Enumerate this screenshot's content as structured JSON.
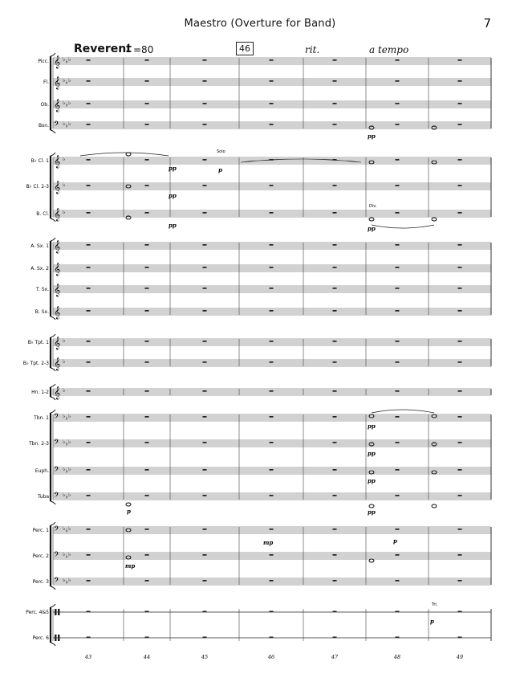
{
  "header": {
    "title": "Maestro (Overture for Band)",
    "page_number": "7"
  },
  "tempo": {
    "marking": "Reverent",
    "note_symbol": "♩",
    "value": "=80"
  },
  "rehearsal": {
    "mark": "46",
    "rit": "rit.",
    "a_tempo": "a tempo"
  },
  "instruments": [
    "Picc.",
    "Fl.",
    "Ob.",
    "Bsn.",
    "B♭ Cl. 1",
    "B♭ Cl. 2-3",
    "B. Cl.",
    "A. Sx. 1",
    "A. Sx. 2",
    "T. Sx.",
    "B. Sx.",
    "B♭ Tpt. 1",
    "B♭ Tpt. 2-3",
    "Hn. 1-2",
    "Tbn. 1",
    "Tbn. 2-3",
    "Euph.",
    "Tuba",
    "Perc. 1",
    "Perc. 2",
    "Perc. 3",
    "Perc. 4&5",
    "Perc. 6"
  ],
  "measure_numbers": [
    "43",
    "44",
    "45",
    "46",
    "47",
    "48",
    "49"
  ],
  "annotations": {
    "solo": "Solo",
    "div": "Div.",
    "tri": "Tri."
  },
  "dynamics": {
    "pp": "pp",
    "p": "p",
    "mp": "mp"
  }
}
